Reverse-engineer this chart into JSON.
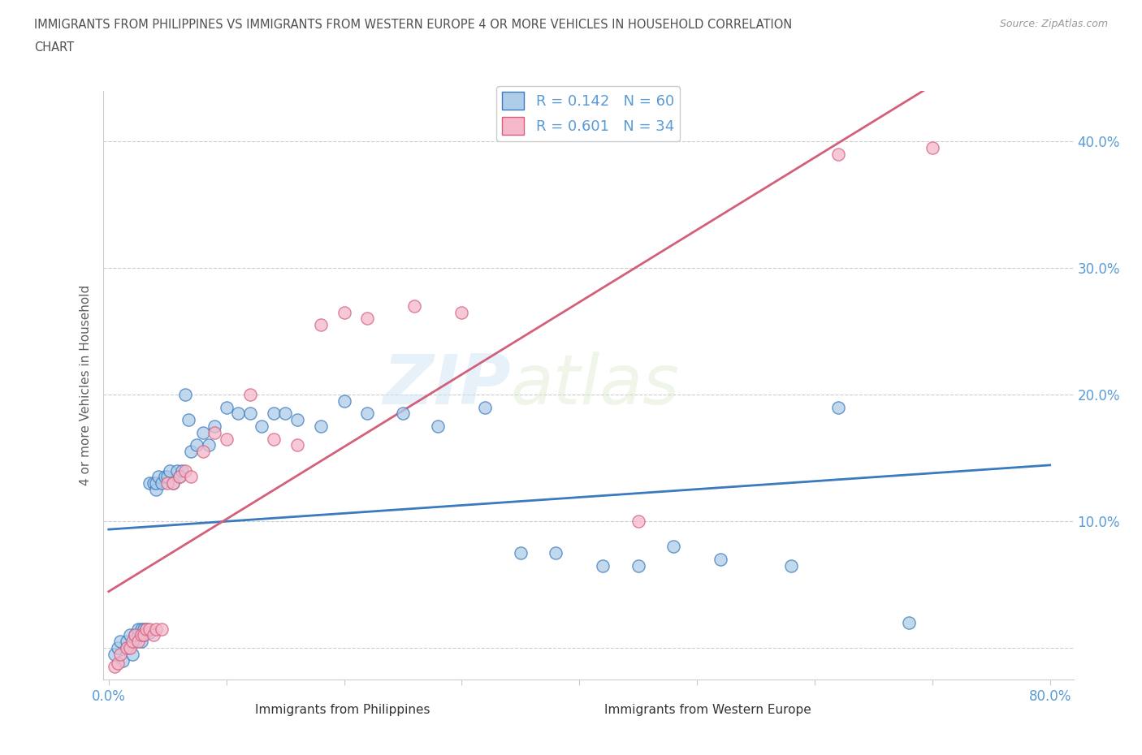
{
  "title_line1": "IMMIGRANTS FROM PHILIPPINES VS IMMIGRANTS FROM WESTERN EUROPE 4 OR MORE VEHICLES IN HOUSEHOLD CORRELATION",
  "title_line2": "CHART",
  "source_text": "Source: ZipAtlas.com",
  "ylabel": "4 or more Vehicles in Household",
  "xlim": [
    -0.005,
    0.82
  ],
  "ylim": [
    -0.025,
    0.44
  ],
  "xticks": [
    0.0,
    0.1,
    0.2,
    0.3,
    0.4,
    0.5,
    0.6,
    0.7,
    0.8
  ],
  "xtick_labels": [
    "0.0%",
    "",
    "",
    "",
    "",
    "",
    "",
    "",
    "80.0%"
  ],
  "yticks": [
    0.0,
    0.1,
    0.2,
    0.3,
    0.4
  ],
  "ytick_labels": [
    "",
    "10.0%",
    "20.0%",
    "30.0%",
    "40.0%"
  ],
  "color_philippines": "#aecde8",
  "color_western_europe": "#f5b8cb",
  "line_color_philippines": "#3a7abf",
  "line_color_western_europe": "#d45f7a",
  "R_philippines": 0.142,
  "N_philippines": 60,
  "R_western_europe": 0.601,
  "N_western_europe": 34,
  "watermark_zip": "ZIP",
  "watermark_atlas": "atlas",
  "philippines_x": [
    0.005,
    0.008,
    0.01,
    0.012,
    0.015,
    0.015,
    0.018,
    0.02,
    0.022,
    0.022,
    0.025,
    0.025,
    0.028,
    0.028,
    0.03,
    0.03,
    0.032,
    0.035,
    0.035,
    0.038,
    0.04,
    0.04,
    0.042,
    0.045,
    0.048,
    0.05,
    0.052,
    0.055,
    0.058,
    0.06,
    0.062,
    0.065,
    0.068,
    0.07,
    0.075,
    0.08,
    0.085,
    0.09,
    0.1,
    0.11,
    0.12,
    0.13,
    0.14,
    0.15,
    0.16,
    0.18,
    0.2,
    0.22,
    0.25,
    0.28,
    0.32,
    0.35,
    0.38,
    0.42,
    0.45,
    0.48,
    0.52,
    0.58,
    0.62,
    0.68
  ],
  "philippines_y": [
    -0.005,
    0.0,
    0.005,
    -0.01,
    0.0,
    0.005,
    0.01,
    -0.005,
    0.005,
    0.01,
    0.01,
    0.015,
    0.005,
    0.015,
    0.01,
    0.015,
    0.015,
    0.012,
    0.13,
    0.13,
    0.125,
    0.13,
    0.135,
    0.13,
    0.135,
    0.135,
    0.14,
    0.13,
    0.14,
    0.135,
    0.14,
    0.2,
    0.18,
    0.155,
    0.16,
    0.17,
    0.16,
    0.175,
    0.19,
    0.185,
    0.185,
    0.175,
    0.185,
    0.185,
    0.18,
    0.175,
    0.195,
    0.185,
    0.185,
    0.175,
    0.19,
    0.075,
    0.075,
    0.065,
    0.065,
    0.08,
    0.07,
    0.065,
    0.19,
    0.02
  ],
  "western_europe_x": [
    0.005,
    0.008,
    0.01,
    0.015,
    0.018,
    0.02,
    0.022,
    0.025,
    0.028,
    0.03,
    0.032,
    0.035,
    0.038,
    0.04,
    0.045,
    0.05,
    0.055,
    0.06,
    0.065,
    0.07,
    0.08,
    0.09,
    0.1,
    0.12,
    0.14,
    0.16,
    0.18,
    0.2,
    0.22,
    0.26,
    0.3,
    0.45,
    0.62,
    0.7
  ],
  "western_europe_y": [
    -0.015,
    -0.012,
    -0.005,
    0.0,
    0.0,
    0.005,
    0.01,
    0.005,
    0.01,
    0.01,
    0.015,
    0.015,
    0.01,
    0.015,
    0.015,
    0.13,
    0.13,
    0.135,
    0.14,
    0.135,
    0.155,
    0.17,
    0.165,
    0.2,
    0.165,
    0.16,
    0.255,
    0.265,
    0.26,
    0.27,
    0.265,
    0.1,
    0.39,
    0.395
  ],
  "background_color": "#ffffff",
  "grid_color": "#cccccc",
  "title_color": "#505050",
  "tick_label_color": "#5b9bd5",
  "axis_label_color": "#606060",
  "legend_text_color": "#333333",
  "legend_rn_color": "#5b9bd5"
}
